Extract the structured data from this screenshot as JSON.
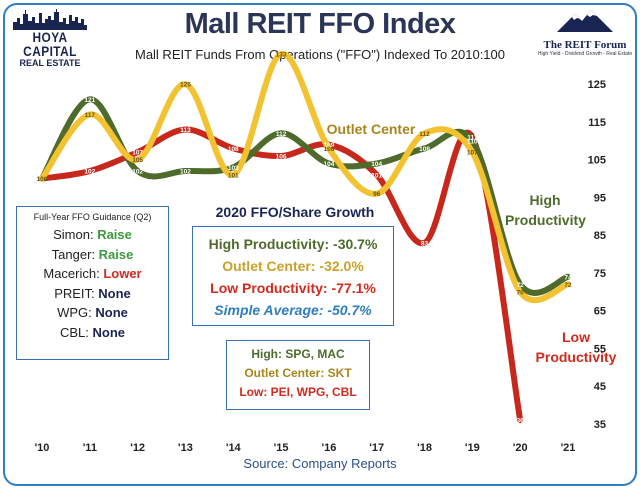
{
  "branding": {
    "left_logo_line1": "HOYA CAPITAL",
    "left_logo_line2": "REAL ESTATE",
    "right_logo_line1": "The REIT Forum",
    "right_logo_line2": "High Yield - Dividend Growth - Real Estate"
  },
  "chart_data": {
    "type": "line",
    "title": "Mall REIT FFO Index",
    "subtitle": "Mall REIT Funds From Operations (\"FFO\") Indexed To 2010:100",
    "x": [
      "'10",
      "'11",
      "'12",
      "'13",
      "'14",
      "'15",
      "'16",
      "'17",
      "'18",
      "'19",
      "'20",
      "'21"
    ],
    "ylim": [
      35,
      130
    ],
    "yticks": [
      35,
      45,
      55,
      65,
      75,
      85,
      95,
      105,
      115,
      125
    ],
    "grid": false,
    "source": "Source: Company Reports",
    "series": [
      {
        "name": "High Productivity",
        "color": "#4e6b2b",
        "values": [
          100,
          121,
          102,
          102,
          103,
          112,
          104,
          104,
          108,
          110,
          72,
          74
        ],
        "labels": [
          "",
          "121",
          "102",
          "102",
          "103",
          "112",
          "104",
          "104",
          "108",
          "110",
          "72",
          "74"
        ]
      },
      {
        "name": "Outlet Center",
        "color": "#f2c230",
        "values": [
          100,
          117,
          105,
          125,
          101,
          133,
          108,
          96,
          112,
          107,
          70,
          72
        ],
        "labels": [
          "100",
          "117",
          "105",
          "125",
          "101",
          "133",
          "108",
          "96",
          "112",
          "107",
          "70",
          "72"
        ]
      },
      {
        "name": "Low Productivity",
        "color": "#c8281c",
        "values": [
          100,
          102,
          107,
          113,
          108,
          106,
          109,
          101,
          83,
          111,
          36,
          null
        ],
        "labels": [
          "",
          "102",
          "107",
          "113",
          "108",
          "106",
          "109",
          "101",
          "83",
          "111",
          "36",
          ""
        ]
      }
    ]
  },
  "series_labels": {
    "outlet": "Outlet Center",
    "high_1": "High",
    "high_2": "Productivity",
    "low_1": "Low",
    "low_2": "Productivity"
  },
  "guidance": {
    "heading": "Full-Year FFO Guidance (Q2)",
    "rows": [
      {
        "company": "Simon:",
        "value": "Raise",
        "color": "#3c9a3c"
      },
      {
        "company": "Tanger:",
        "value": "Raise",
        "color": "#3c9a3c"
      },
      {
        "company": "Macerich:",
        "value": "Lower",
        "color": "#d12a1e"
      },
      {
        "company": "PREIT:",
        "value": "None",
        "color": "#1a2452"
      },
      {
        "company": "WPG:",
        "value": "None",
        "color": "#1a2452"
      },
      {
        "company": "CBL:",
        "value": "None",
        "color": "#1a2452"
      }
    ]
  },
  "growth": {
    "title": "2020 FFO/Share Growth",
    "rows": [
      {
        "text": "High Productivity: -30.7%",
        "color": "#4e6b2b",
        "italic": false
      },
      {
        "text": "Outlet Center: -32.0%",
        "color": "#c9a227",
        "italic": false
      },
      {
        "text": "Low Productivity: -77.1%",
        "color": "#d12a1e",
        "italic": false
      },
      {
        "text": "Simple Average: -50.7%",
        "color": "#2f7ec0",
        "italic": true
      }
    ]
  },
  "members": {
    "rows": [
      {
        "text": "High: SPG, MAC",
        "color": "#4e6b2b"
      },
      {
        "text": "Outlet Center: SKT",
        "color": "#a8861a"
      },
      {
        "text": "Low: PEI, WPG, CBL",
        "color": "#d12a1e"
      }
    ]
  }
}
